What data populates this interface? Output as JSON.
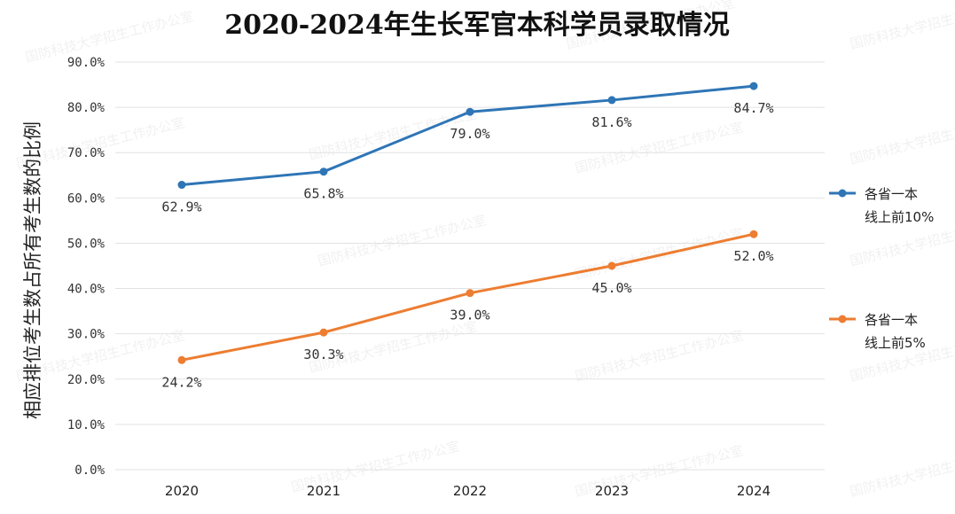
{
  "watermark": "国防科技大学招生工作办公室",
  "chart_data": {
    "type": "line",
    "title": "2020-2024年生长军官本科学员录取情况",
    "ylabel": "相应排位考生数占所有考生数的比例",
    "xlabel": "",
    "categories": [
      "2020",
      "2021",
      "2022",
      "2023",
      "2024"
    ],
    "ylim": [
      0,
      90
    ],
    "yticks": [
      "0.0%",
      "10.0%",
      "20.0%",
      "30.0%",
      "40.0%",
      "50.0%",
      "60.0%",
      "70.0%",
      "80.0%",
      "90.0%"
    ],
    "grid": true,
    "legend_position": "right",
    "series": [
      {
        "name": "各省一本线上前10%",
        "name_lines": [
          "各省一本",
          "线上前10%"
        ],
        "color": "#2e75b6",
        "values": [
          62.9,
          65.8,
          79.0,
          81.6,
          84.7
        ],
        "labels": [
          "62.9%",
          "65.8%",
          "79.0%",
          "81.6%",
          "84.7%"
        ]
      },
      {
        "name": "各省一本线上前5%",
        "name_lines": [
          "各省一本",
          "线上前5%"
        ],
        "color": "#ed7d31",
        "values": [
          24.2,
          30.3,
          39.0,
          45.0,
          52.0
        ],
        "labels": [
          "24.2%",
          "30.3%",
          "39.0%",
          "45.0%",
          "52.0%"
        ]
      }
    ]
  }
}
